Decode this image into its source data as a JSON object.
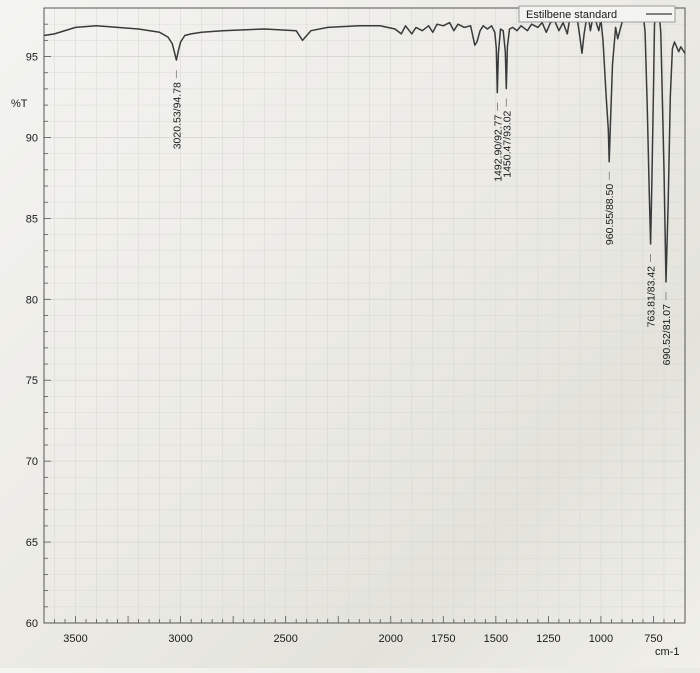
{
  "chart_data": {
    "type": "line",
    "legend": "Estilbene standard",
    "ylabel": "%T",
    "xlabel": "cm-1",
    "xlim": [
      3650,
      600
    ],
    "ylim": [
      60,
      98
    ],
    "x_ticks": [
      3500,
      3000,
      2500,
      2000,
      1750,
      1500,
      1250,
      1000,
      750
    ],
    "y_ticks": [
      60,
      65,
      70,
      75,
      80,
      85,
      90,
      95
    ],
    "grid": true,
    "legend_position": "top-right",
    "colors": {
      "line": "#3a3a3a",
      "grid": "#d6d6d0",
      "axis": "#555555"
    },
    "series": [
      {
        "name": "Estilbene standard",
        "x": [
          3650,
          3600,
          3500,
          3400,
          3300,
          3200,
          3100,
          3060,
          3040,
          3030,
          3020,
          3010,
          3000,
          2980,
          2950,
          2900,
          2800,
          2600,
          2450,
          2420,
          2380,
          2300,
          2150,
          2050,
          1980,
          1950,
          1930,
          1900,
          1880,
          1850,
          1820,
          1800,
          1780,
          1750,
          1720,
          1700,
          1680,
          1650,
          1620,
          1600,
          1590,
          1575,
          1560,
          1540,
          1520,
          1505,
          1498,
          1492.9,
          1488,
          1478,
          1465,
          1455,
          1450.47,
          1445,
          1435,
          1420,
          1400,
          1380,
          1350,
          1330,
          1300,
          1280,
          1260,
          1240,
          1220,
          1200,
          1180,
          1160,
          1150,
          1130,
          1110,
          1100,
          1090,
          1080,
          1070,
          1060,
          1050,
          1040,
          1030,
          1020,
          1010,
          1000,
          990,
          975,
          965,
          960.55,
          955,
          945,
          930,
          920,
          910,
          900,
          880,
          860,
          840,
          820,
          800,
          790,
          780,
          770,
          763.81,
          758,
          750,
          745,
          735,
          725,
          715,
          700,
          690.52,
          680,
          670,
          660,
          650,
          640,
          630,
          620,
          610,
          600
        ],
        "y": [
          96.3,
          96.4,
          96.8,
          96.9,
          96.8,
          96.7,
          96.5,
          96.2,
          95.8,
          95.3,
          94.78,
          95.4,
          95.9,
          96.3,
          96.4,
          96.5,
          96.6,
          96.7,
          96.6,
          96.0,
          96.6,
          96.8,
          96.9,
          96.9,
          96.7,
          96.4,
          96.9,
          96.4,
          96.8,
          96.6,
          96.9,
          96.5,
          97.0,
          96.9,
          97.1,
          96.6,
          97.0,
          96.8,
          96.9,
          95.7,
          95.9,
          96.6,
          96.9,
          96.7,
          96.9,
          96.5,
          95.5,
          92.77,
          95.2,
          96.7,
          96.6,
          95.3,
          93.02,
          95.6,
          96.7,
          96.8,
          96.6,
          96.9,
          96.6,
          97.0,
          96.8,
          97.1,
          96.5,
          97.1,
          97.2,
          96.6,
          97.1,
          96.4,
          97.2,
          97.4,
          97.1,
          96.2,
          95.2,
          96.4,
          97.2,
          97.5,
          96.6,
          97.3,
          97.6,
          97.0,
          96.6,
          97.3,
          96.0,
          92.5,
          90.5,
          88.5,
          90.8,
          94.5,
          96.8,
          96.1,
          96.6,
          97.1,
          97.5,
          97.8,
          98.0,
          97.6,
          97.8,
          96.5,
          92.0,
          86.5,
          83.42,
          87.0,
          93.0,
          97.0,
          97.8,
          98.0,
          96.5,
          88.0,
          81.07,
          86.0,
          92.5,
          95.5,
          95.9,
          95.6,
          95.3,
          95.6,
          95.4,
          95.2
        ]
      }
    ],
    "annotations": [
      {
        "x": 3020.53,
        "y": 94.78,
        "text": "3020.53/94.78"
      },
      {
        "x": 1492.9,
        "y": 92.77,
        "text": "1492.90/92.77"
      },
      {
        "x": 1450.47,
        "y": 93.02,
        "text": "1450.47/93.02"
      },
      {
        "x": 960.55,
        "y": 88.5,
        "text": "960.55/88.50"
      },
      {
        "x": 763.81,
        "y": 83.42,
        "text": "763.81/83.42"
      },
      {
        "x": 690.52,
        "y": 81.07,
        "text": "690.52/81.07"
      }
    ]
  }
}
